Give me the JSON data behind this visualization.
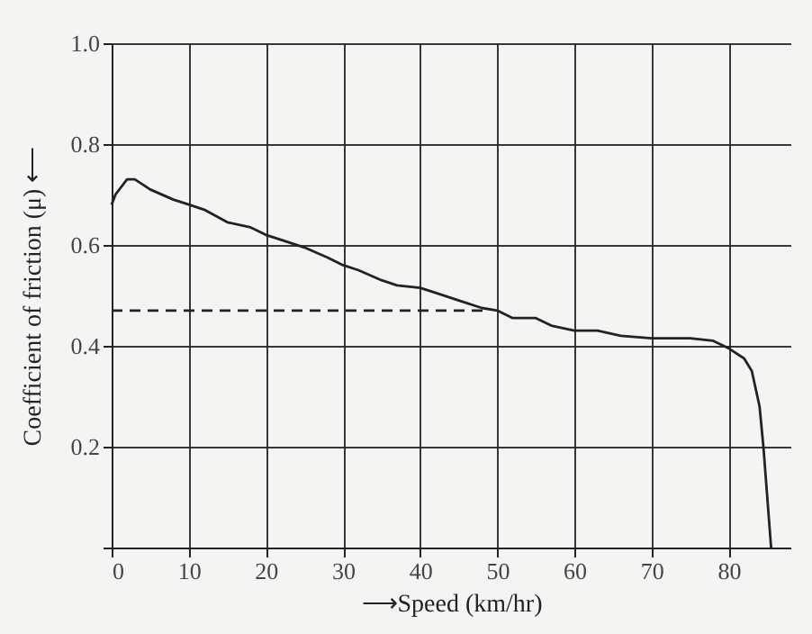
{
  "chart_data": {
    "type": "line",
    "xlabel": "⟶Speed (km/hr)",
    "ylabel": "Coefficient of friction (μ) ⟵",
    "xlim": [
      0,
      88
    ],
    "xticks": [
      0,
      10,
      20,
      30,
      40,
      50,
      60,
      70,
      80
    ],
    "ylim": [
      0,
      1
    ],
    "yticks": [
      {
        "value": 0,
        "label": null
      },
      0.2,
      0.4,
      0.6,
      0.8,
      {
        "value": 1,
        "label": "1.0"
      }
    ],
    "grid": true,
    "series": [
      {
        "color": "#222222",
        "line_style": "solid",
        "x": [
          0,
          0.5,
          2,
          3,
          5,
          8,
          10,
          12,
          15,
          18,
          20,
          22,
          25,
          28,
          30,
          32,
          35,
          37,
          40,
          42,
          45,
          48,
          50,
          52,
          55,
          57,
          60,
          63,
          66,
          70,
          75,
          78,
          80,
          82,
          83,
          84,
          84.5,
          85,
          85.5
        ],
        "values": [
          0.68,
          0.7,
          0.73,
          0.73,
          0.71,
          0.69,
          0.68,
          0.67,
          0.645,
          0.635,
          0.62,
          0.61,
          0.595,
          0.575,
          0.56,
          0.55,
          0.53,
          0.52,
          0.515,
          0.505,
          0.49,
          0.475,
          0.47,
          0.455,
          0.455,
          0.44,
          0.43,
          0.43,
          0.42,
          0.415,
          0.415,
          0.41,
          0.395,
          0.375,
          0.35,
          0.28,
          0.2,
          0.1,
          0
        ]
      },
      {
        "color": "#222222",
        "line_style": "dashed",
        "x": [
          0,
          49
        ],
        "values": [
          0.47,
          0.47
        ]
      }
    ]
  }
}
